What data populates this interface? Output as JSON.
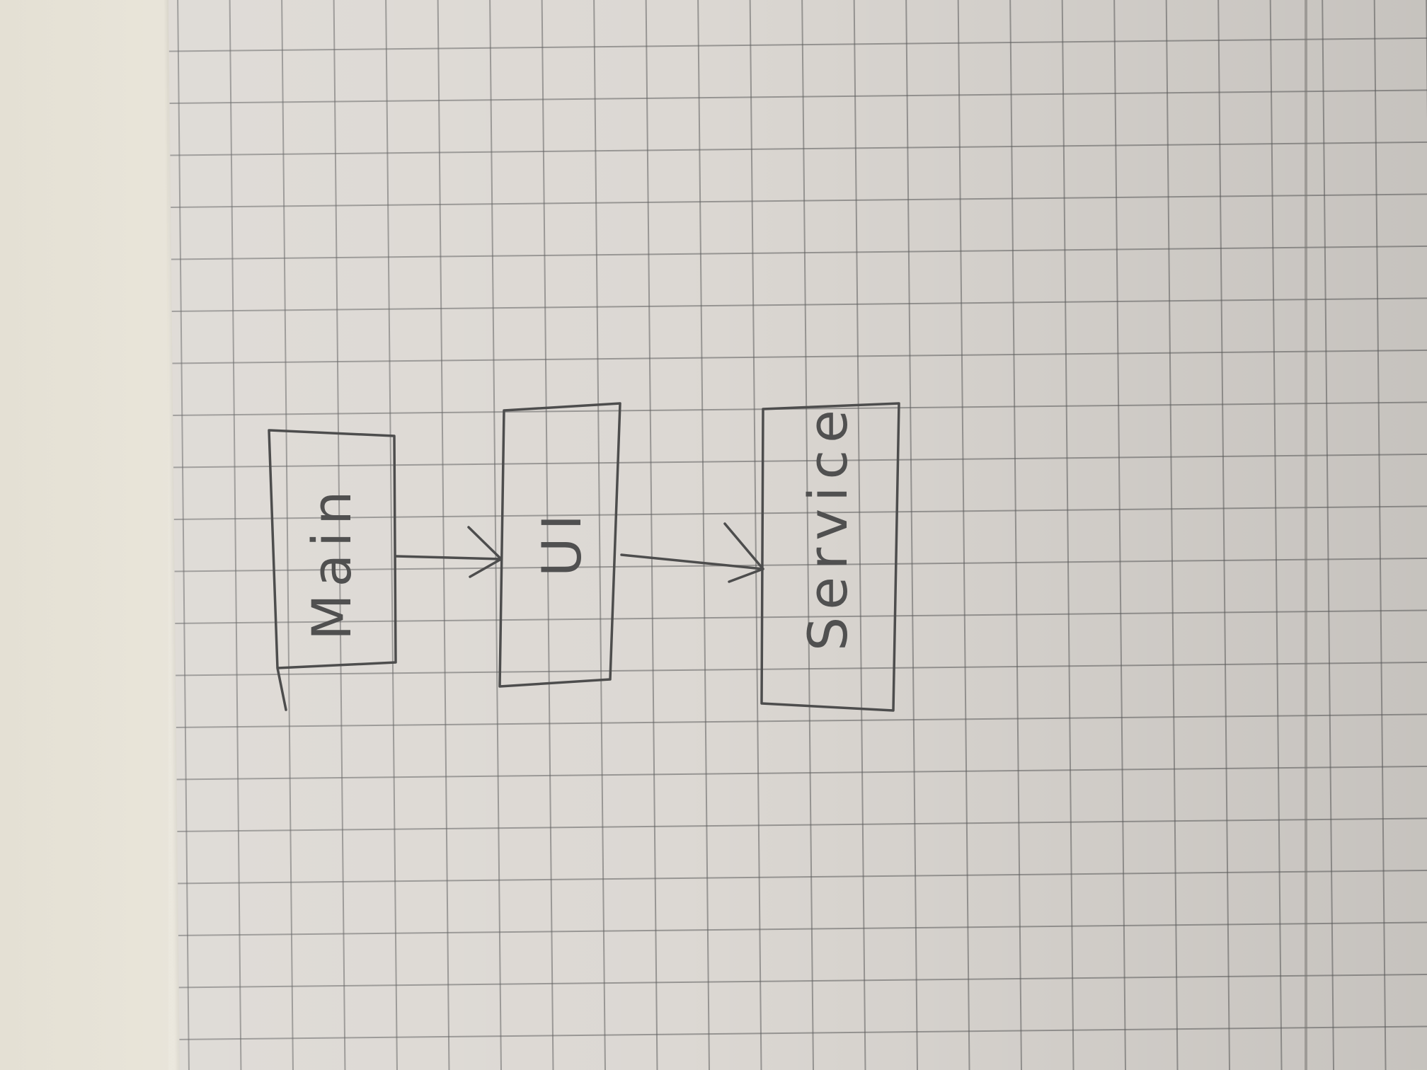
{
  "diagram": {
    "nodes": [
      {
        "id": "main",
        "label": "Main"
      },
      {
        "id": "ui",
        "label": "UI"
      },
      {
        "id": "service",
        "label": "Service"
      }
    ],
    "edges": [
      {
        "from": "main",
        "to": "ui"
      },
      {
        "from": "ui",
        "to": "service"
      }
    ]
  }
}
